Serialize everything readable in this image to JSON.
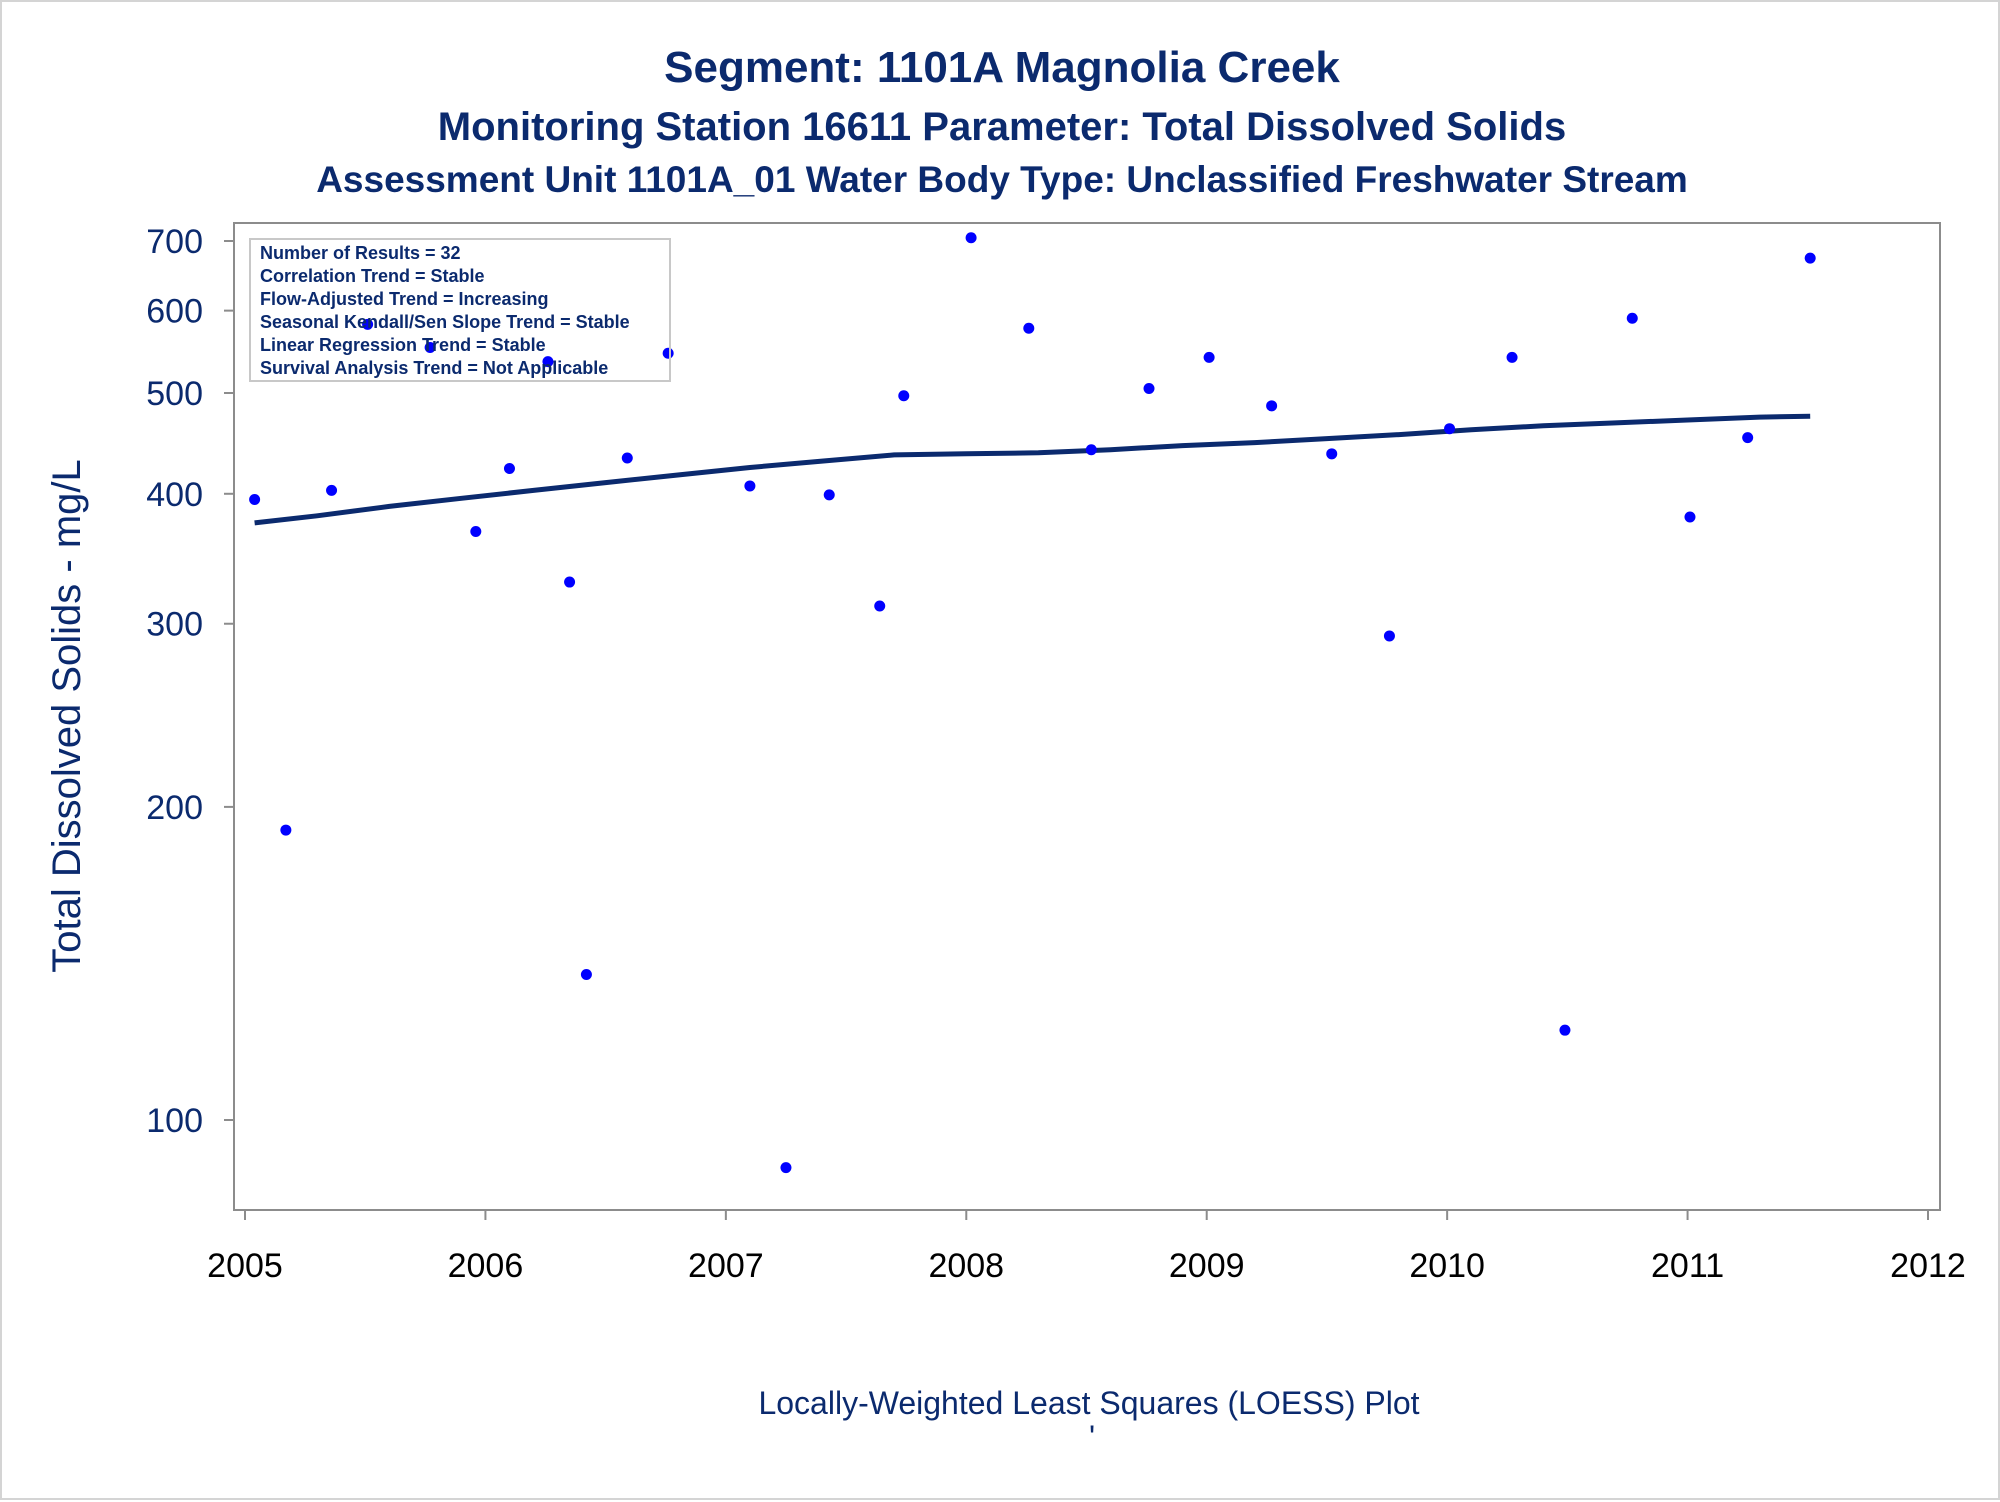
{
  "title": "Segment: 1101A  Magnolia Creek",
  "subtitle": "Monitoring Station 16611 Parameter: Total Dissolved Solids",
  "subtitle2": "Assessment Unit 1101A_01   Water Body Type: Unclassified Freshwater Stream",
  "footnote": "Locally-Weighted Least Squares (LOESS) Plot",
  "footnote_mark": "'",
  "info_box": [
    "Number of Results = 32",
    "Correlation Trend = Stable",
    "Flow-Adjusted Trend = Increasing",
    "Seasonal Kendall/Sen Slope Trend = Stable",
    "Linear Regression Trend = Stable",
    "Survival Analysis Trend = Not Applicable"
  ],
  "colors": {
    "text": "#0b2a6e",
    "points": "#0000ff",
    "loess_line": "#0b2a6e",
    "axis": "#8c8c8c"
  },
  "chart_data": {
    "type": "scatter",
    "ylabel": "Total Dissolved Solids - mg/L",
    "xlabel": "",
    "y_scale": "log",
    "xlim": [
      2005,
      2012
    ],
    "ylim": [
      87,
      720
    ],
    "x_ticks": [
      2005,
      2006,
      2007,
      2008,
      2009,
      2010,
      2011,
      2012
    ],
    "y_ticks": [
      100,
      200,
      300,
      400,
      500,
      600,
      700
    ],
    "grid": false,
    "legend": "none",
    "series": [
      {
        "kind": "points",
        "x": [
          2005.04,
          2005.17,
          2005.36,
          2005.51,
          2005.77,
          2005.96,
          2006.1,
          2006.26,
          2006.35,
          2006.42,
          2006.59,
          2006.76,
          2007.1,
          2007.25,
          2007.43,
          2007.64,
          2007.74,
          2008.02,
          2008.26,
          2008.52,
          2008.76,
          2009.01,
          2009.27,
          2009.52,
          2009.76,
          2010.01,
          2010.27,
          2010.49,
          2010.77,
          2011.01,
          2011.25,
          2011.51
        ],
        "y": [
          395,
          190,
          403,
          582,
          553,
          368,
          423,
          536,
          329,
          138,
          433,
          546,
          407,
          90,
          399,
          312,
          497,
          705,
          577,
          441,
          505,
          541,
          486,
          437,
          292,
          462,
          541,
          122,
          590,
          380,
          453,
          674
        ]
      },
      {
        "kind": "loess",
        "x": [
          2005.04,
          2005.3,
          2005.6,
          2005.9,
          2006.2,
          2006.5,
          2006.8,
          2007.1,
          2007.4,
          2007.7,
          2008.0,
          2008.3,
          2008.6,
          2008.9,
          2009.2,
          2009.5,
          2009.8,
          2010.1,
          2010.4,
          2010.7,
          2011.0,
          2011.3,
          2011.51
        ],
        "y": [
          375,
          381,
          389,
          396,
          403,
          410,
          417,
          424,
          430,
          436,
          437,
          438,
          441,
          445,
          448,
          452,
          456,
          461,
          465,
          468,
          471,
          474,
          475
        ]
      }
    ]
  }
}
